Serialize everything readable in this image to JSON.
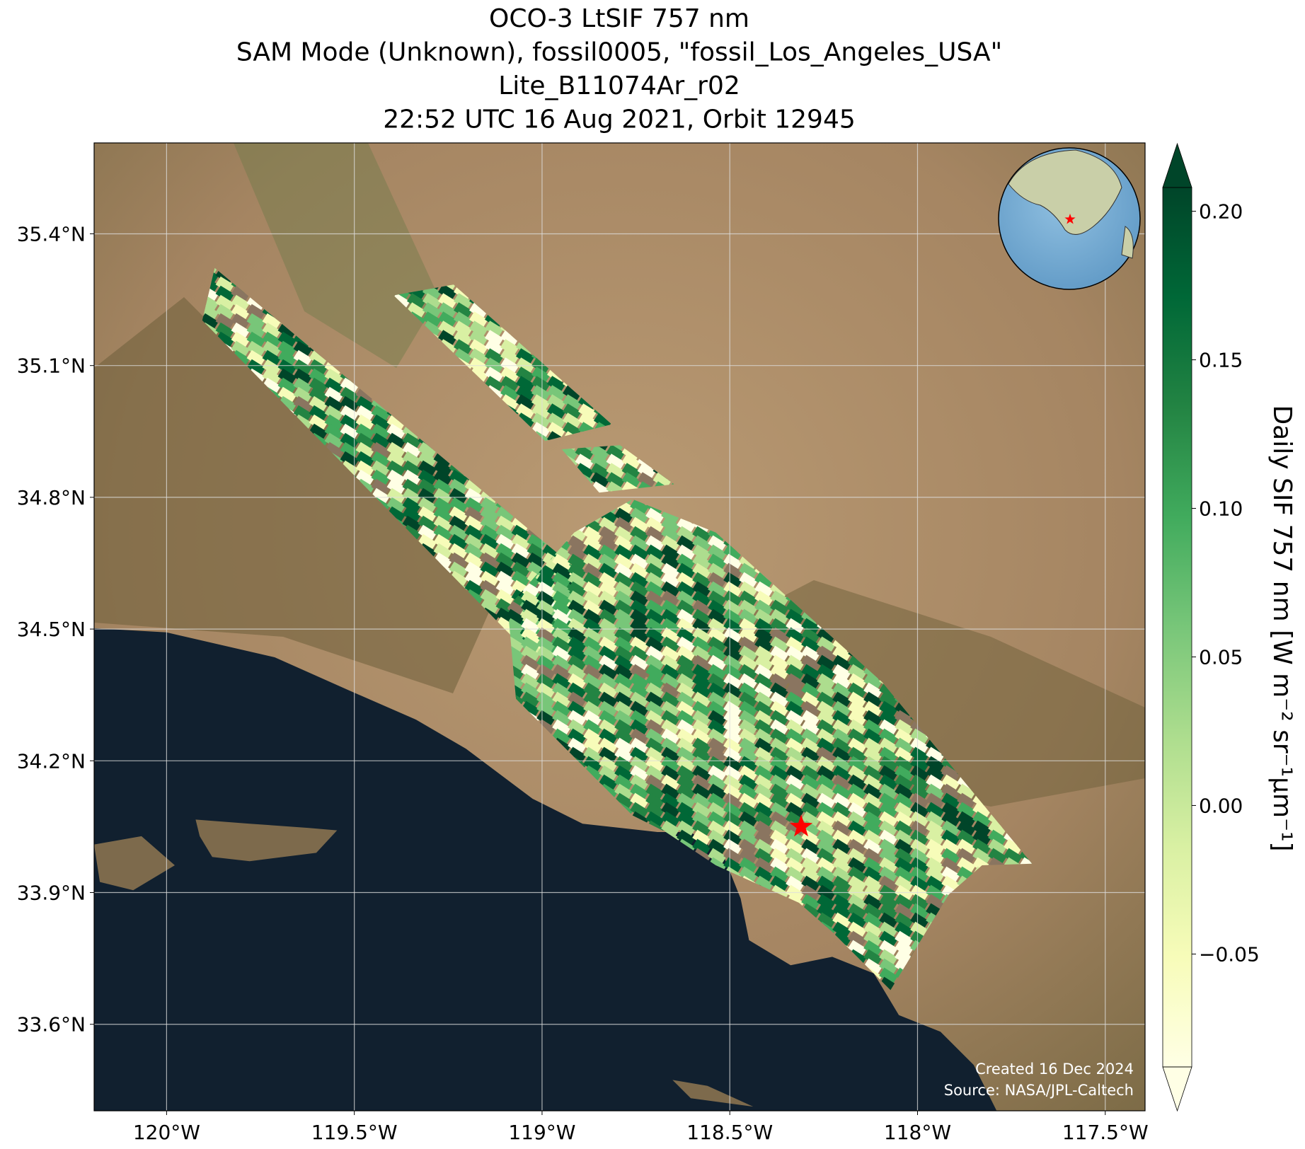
{
  "chart_data": {
    "type": "map",
    "title": [
      "OCO-3 LtSIF 757 nm",
      "SAM Mode (Unknown), fossil0005, \"fossil_Los_Angeles_USA\"",
      "Lite_B11074Ar_r02",
      "22:52 UTC 16 Aug 2021, Orbit 12945"
    ],
    "xlim": [
      -120.193,
      -117.394
    ],
    "ylim": [
      33.403,
      35.607
    ],
    "xticks": [
      {
        "value": -120,
        "label": "120°W"
      },
      {
        "value": -119.5,
        "label": "119.5°W"
      },
      {
        "value": -119,
        "label": "119°W"
      },
      {
        "value": -118.5,
        "label": "118.5°W"
      },
      {
        "value": -118,
        "label": "118°W"
      },
      {
        "value": -117.5,
        "label": "117.5°W"
      }
    ],
    "yticks": [
      {
        "value": 33.6,
        "label": "33.6°N"
      },
      {
        "value": 33.9,
        "label": "33.9°N"
      },
      {
        "value": 34.2,
        "label": "34.2°N"
      },
      {
        "value": 34.5,
        "label": "34.5°N"
      },
      {
        "value": 34.8,
        "label": "34.8°N"
      },
      {
        "value": 35.1,
        "label": "35.1°N"
      },
      {
        "value": 35.4,
        "label": "35.4°N"
      }
    ],
    "grid": true,
    "target": {
      "lon": -118.31,
      "lat": 34.05,
      "color": "#ff0000"
    },
    "colorbar": {
      "label": "Daily SIF 757 nm [W m⁻² sr⁻¹µm⁻¹]",
      "clim": [
        -0.088,
        0.208
      ],
      "extend": "both",
      "colormap": [
        "#ffffe5",
        "#f7fcb9",
        "#d9f0a3",
        "#addd8e",
        "#78c679",
        "#41ab5d",
        "#238443",
        "#006837",
        "#004529"
      ],
      "ticks": [
        {
          "value": -0.05,
          "label": "−0.05"
        },
        {
          "value": 0,
          "label": "0.00"
        },
        {
          "value": 0.05,
          "label": "0.05"
        },
        {
          "value": 0.1,
          "label": "0.10"
        },
        {
          "value": 0.15,
          "label": "0.15"
        },
        {
          "value": 0.2,
          "label": "0.20"
        }
      ]
    },
    "credits": [
      "Created 16 Dec 2024",
      "Source: NASA/JPL-Caltech"
    ]
  }
}
